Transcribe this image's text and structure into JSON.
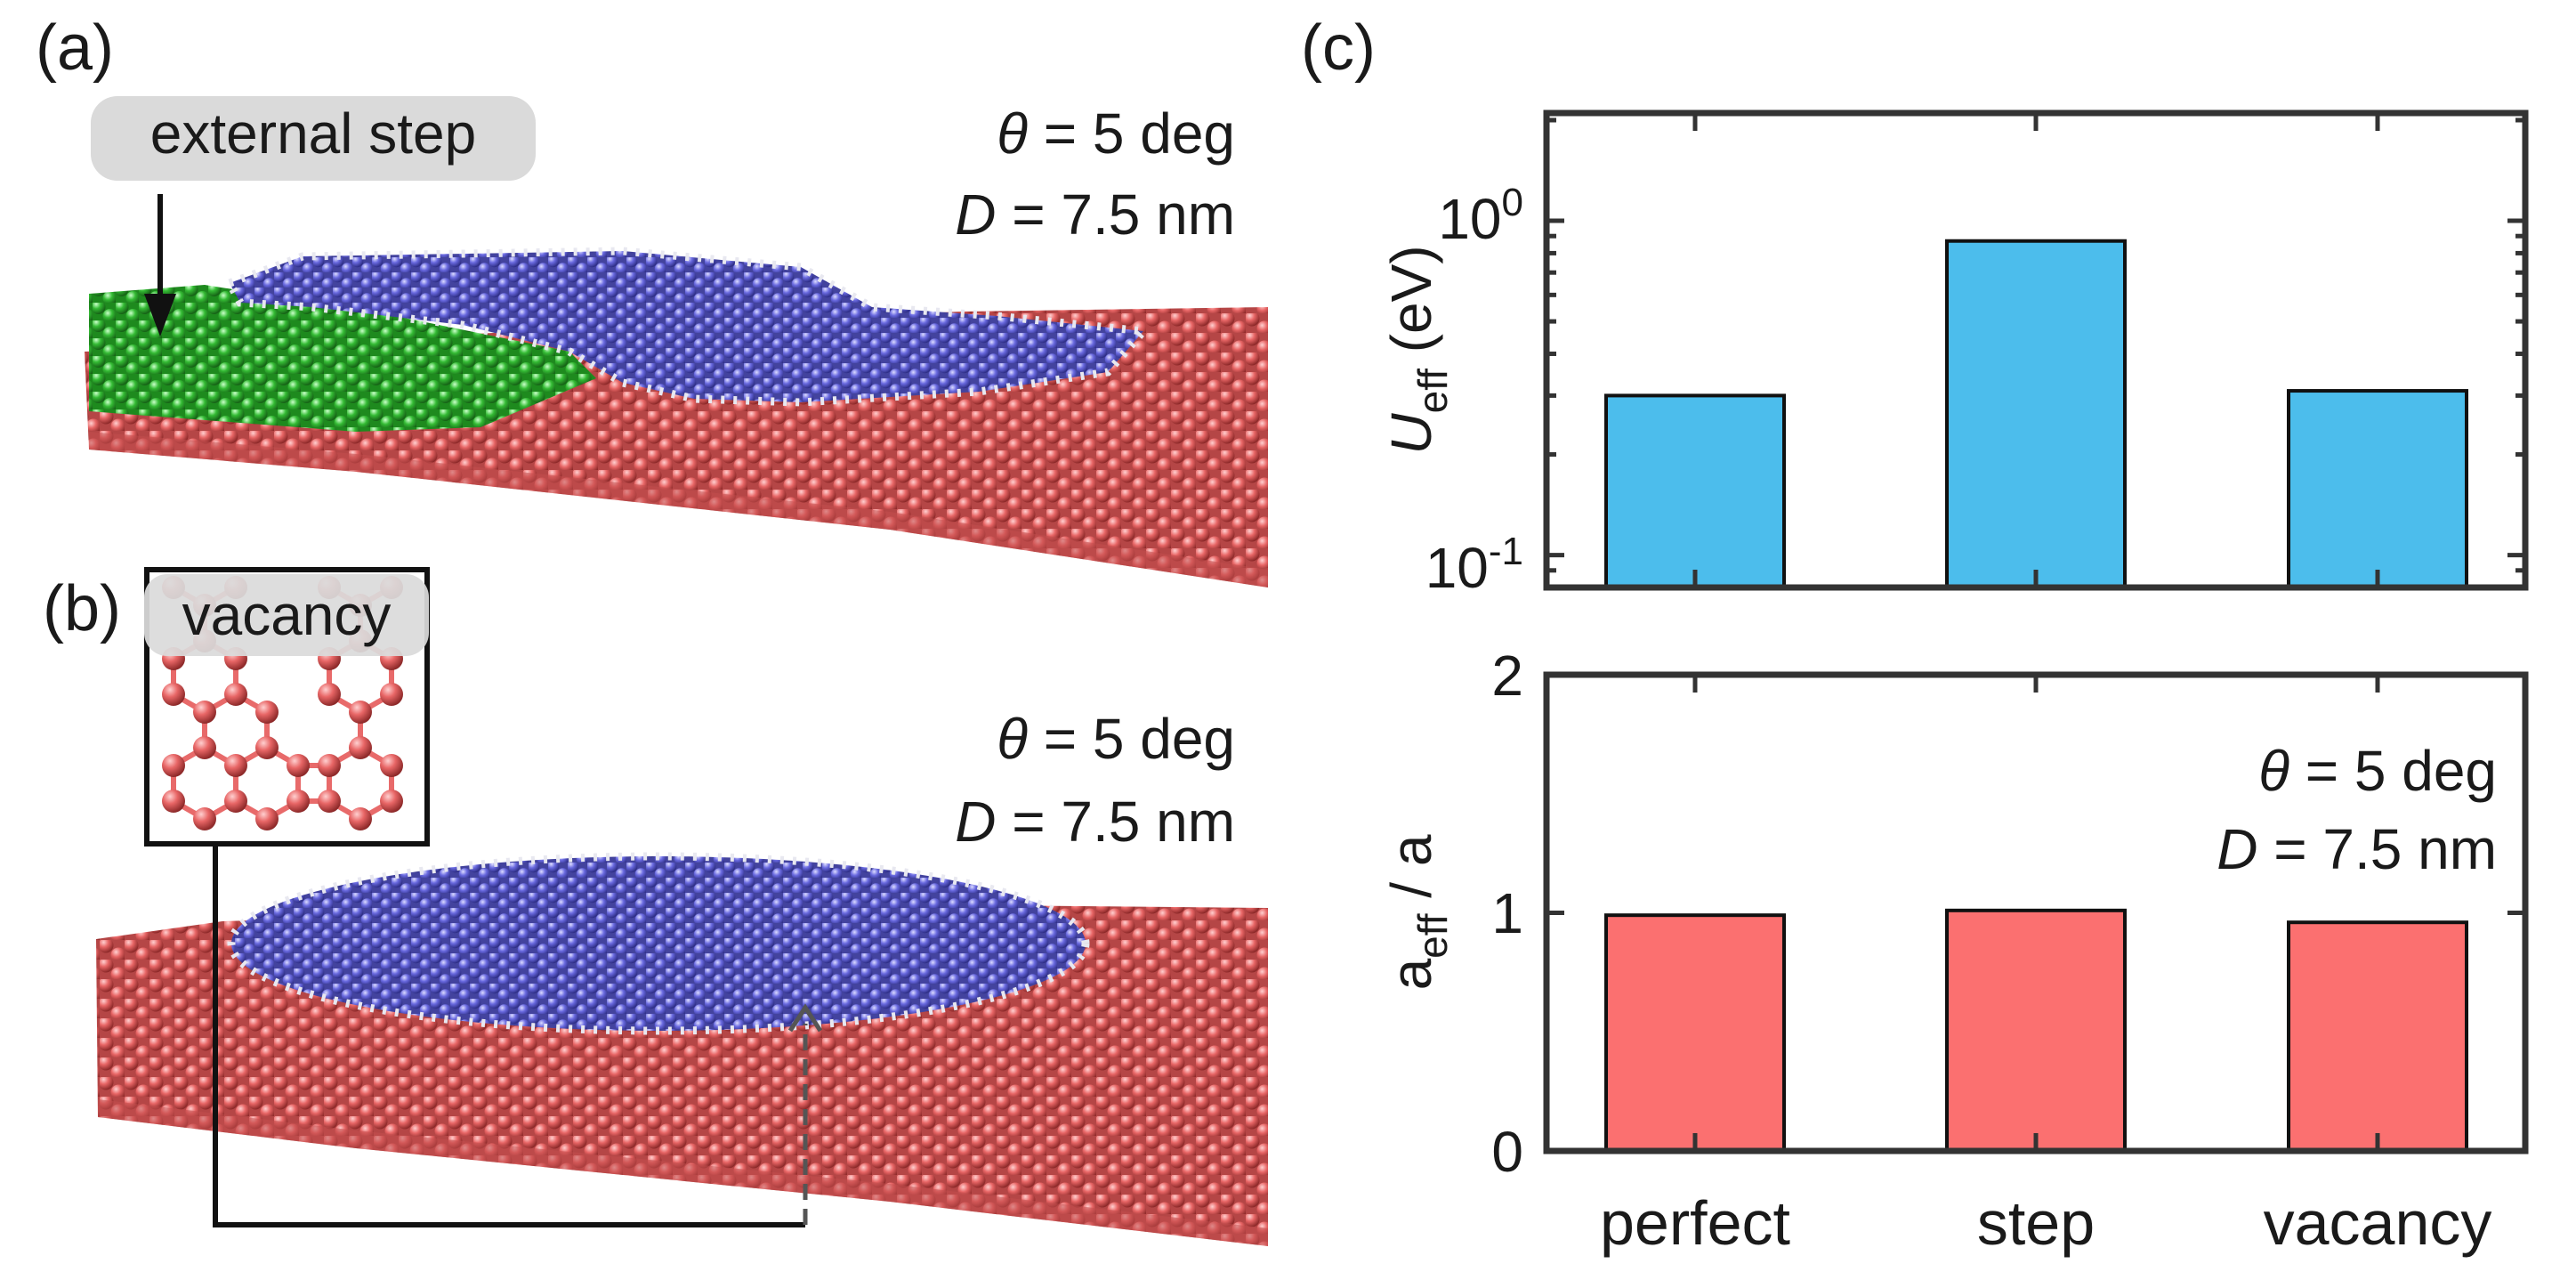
{
  "panel_labels": {
    "a": "(a)",
    "b": "(b)",
    "c": "(c)"
  },
  "panel_a": {
    "callout": "external step",
    "theta_symbol": "θ",
    "theta_rest": " = 5 deg",
    "d_symbol": "D",
    "d_rest": " = 7.5 nm"
  },
  "panel_b": {
    "inset_label": "vacancy",
    "theta_symbol": "θ",
    "theta_rest": " = 5 deg",
    "d_symbol": "D",
    "d_rest": " = 7.5 nm"
  },
  "colors": {
    "substrate": "#e05a5a",
    "flake": "#5a5ad6",
    "step_layer": "#2fae2f",
    "edge": "#e8e8f0",
    "bar_top": "#4cbdec",
    "bar_bottom": "#fb7070"
  },
  "chart_data": [
    {
      "type": "bar",
      "categories": [
        "perfect",
        "step",
        "vacancy"
      ],
      "values": [
        0.3,
        0.87,
        0.31
      ],
      "yscale": "log",
      "ylim": [
        0.08,
        2.1
      ],
      "yticks": [
        {
          "base": "10",
          "exp": "0"
        },
        {
          "base": "10",
          "exp": "-1"
        }
      ],
      "ylabel_main": "U",
      "ylabel_sub": "eff",
      "ylabel_unit": " (eV)",
      "xlabel": ""
    },
    {
      "type": "bar",
      "categories": [
        "perfect",
        "step",
        "vacancy"
      ],
      "values": [
        0.99,
        1.01,
        0.96
      ],
      "ylim": [
        0,
        2
      ],
      "yticks": [
        "0",
        "1",
        "2"
      ],
      "ylabel_main": "a",
      "ylabel_sub": "eff",
      "ylabel_unit": " / a",
      "annotation": {
        "theta_symbol": "θ",
        "theta_rest": " = 5 deg",
        "d_symbol": "D",
        "d_rest": " = 7.5 nm"
      }
    }
  ]
}
